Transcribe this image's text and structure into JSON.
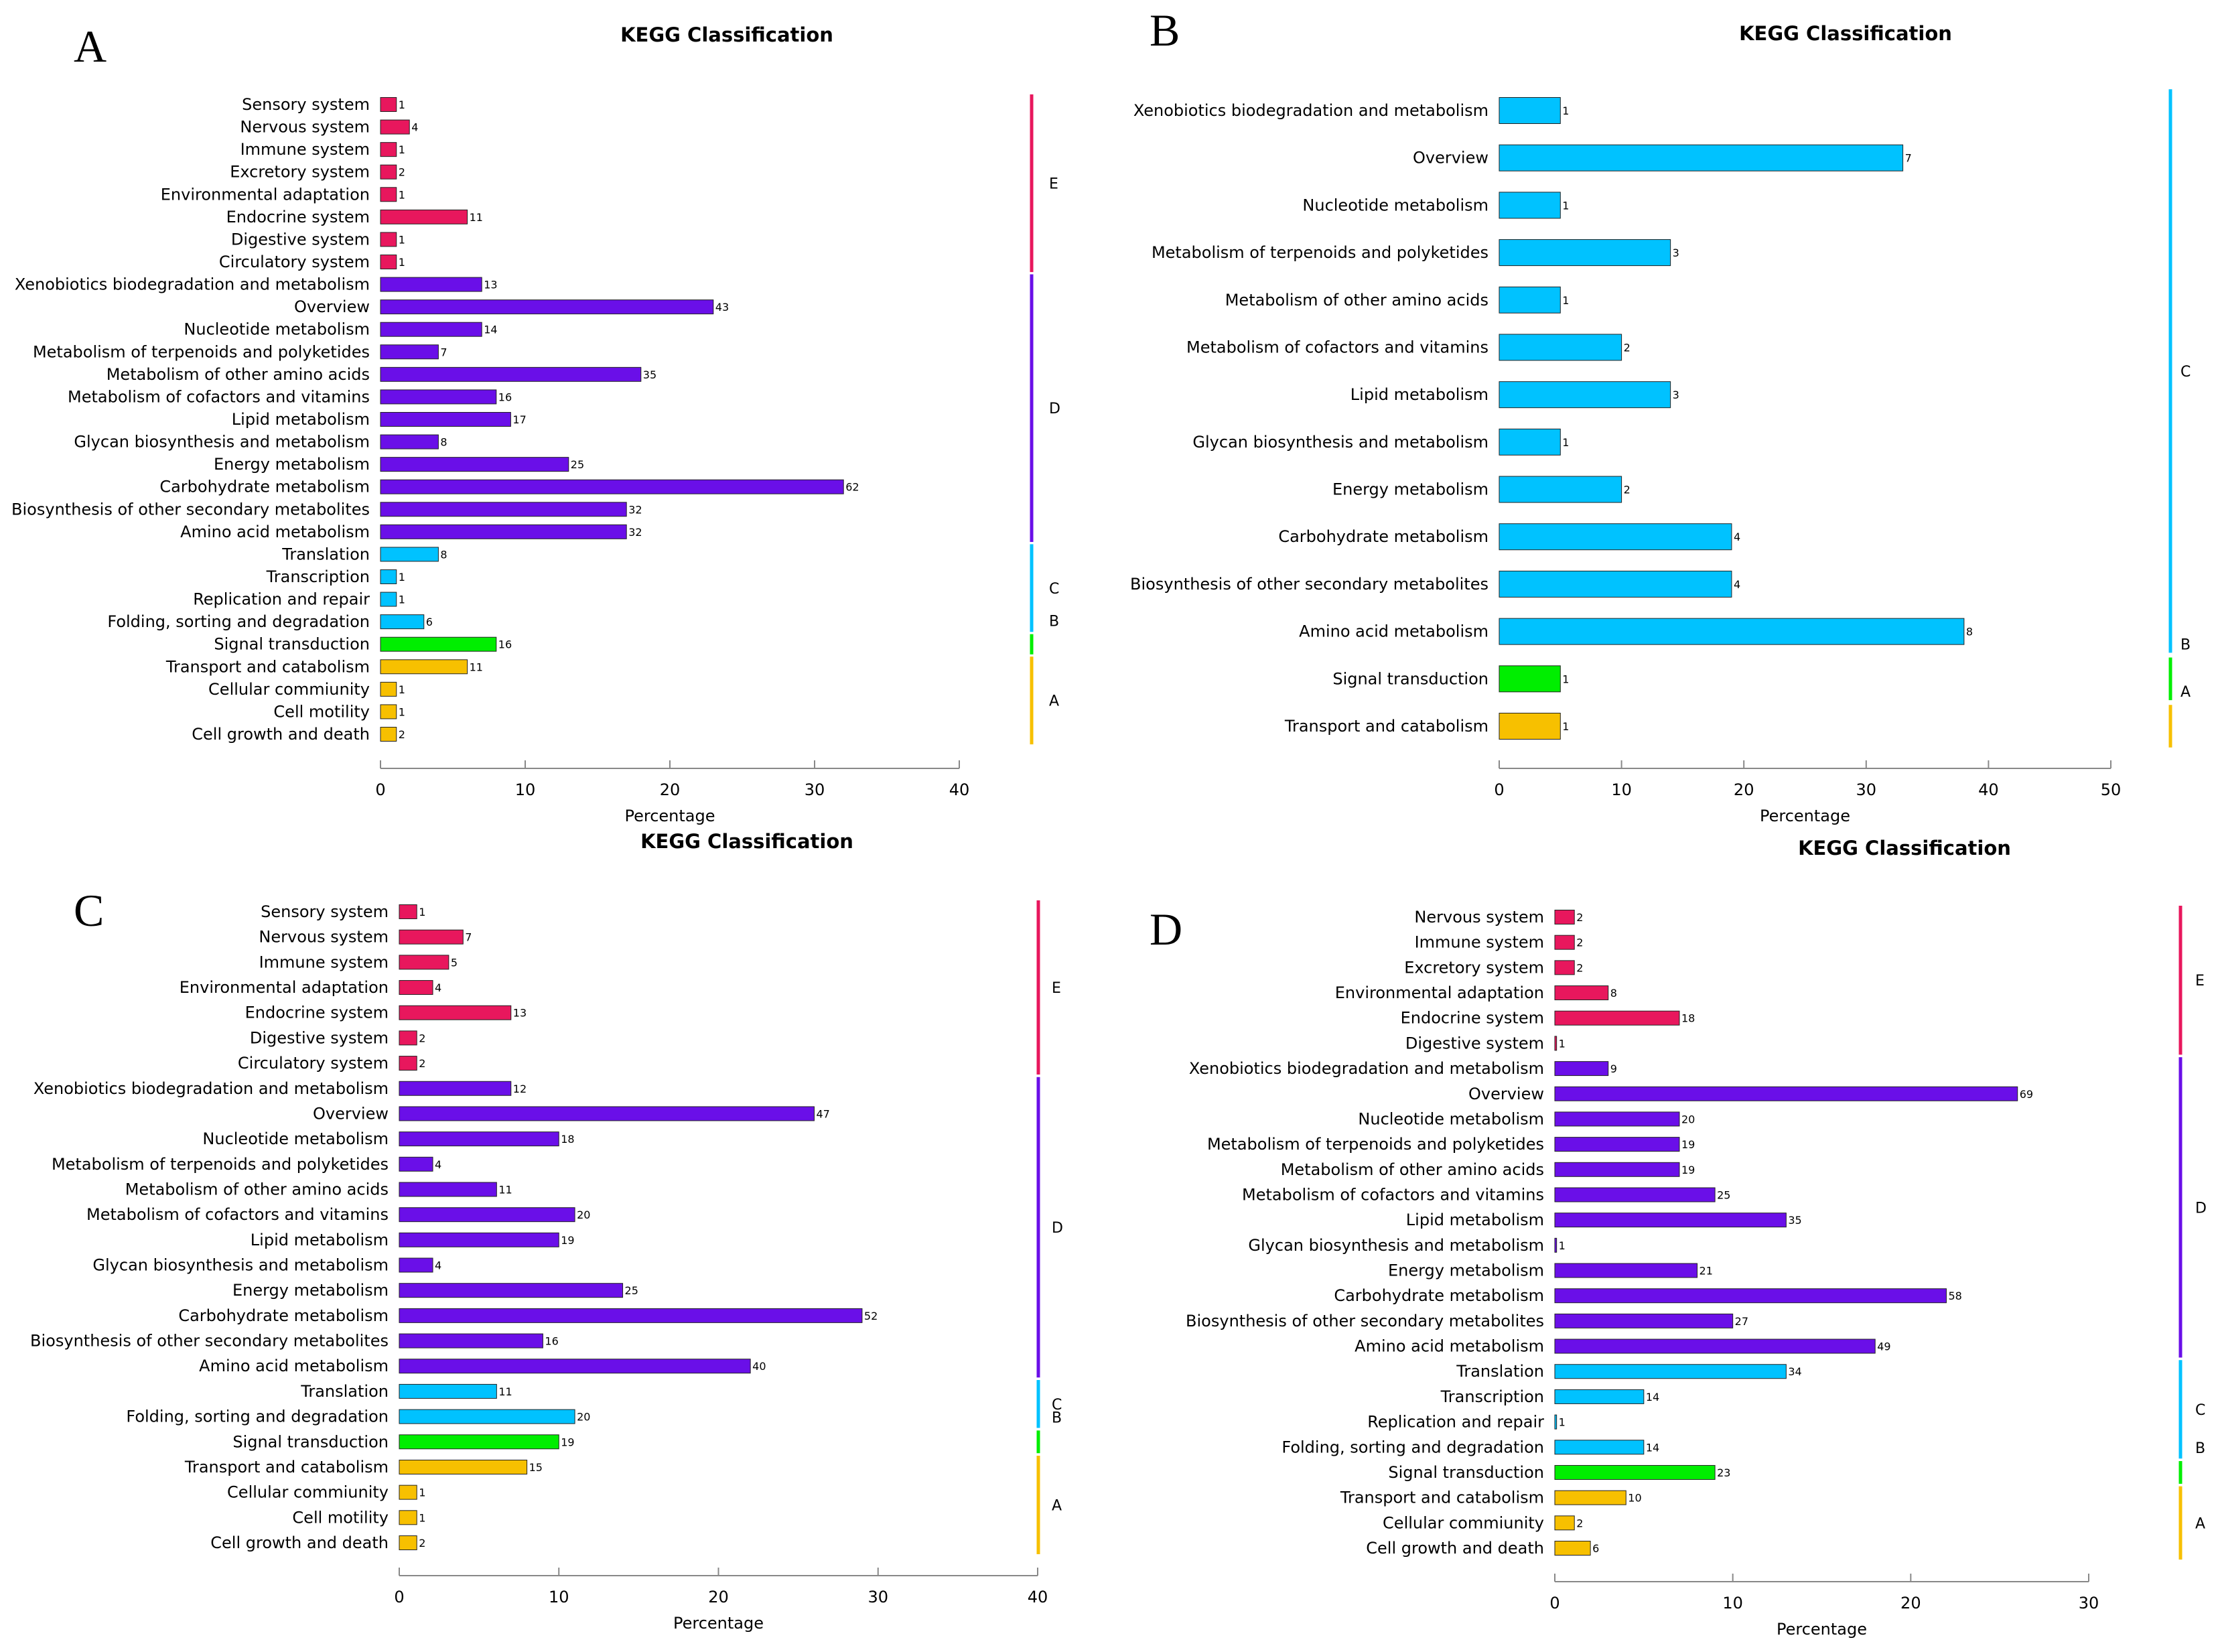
{
  "colors": {
    "E": "#e8175d",
    "D": "#6a0fe8",
    "C": "#00c2ff",
    "B": "#00ee00",
    "A": "#f7c000"
  },
  "chart_data": [
    {
      "type": "bar",
      "orientation": "horizontal",
      "panel": "A",
      "title": "KEGG Classification",
      "xlabel": "Percentage",
      "xlim": [
        0,
        40
      ],
      "xticks": [
        0,
        10,
        20,
        30,
        40
      ],
      "categories": [
        {
          "label": "Sensory system",
          "value": 1.1,
          "count": "1",
          "group": "E"
        },
        {
          "label": "Nervous system",
          "value": 2.0,
          "count": "4",
          "group": "E"
        },
        {
          "label": "Immune system",
          "value": 1.1,
          "count": "1",
          "group": "E"
        },
        {
          "label": "Excretory system",
          "value": 1.1,
          "count": "2",
          "group": "E"
        },
        {
          "label": "Environmental adaptation",
          "value": 1.1,
          "count": "1",
          "group": "E"
        },
        {
          "label": "Endocrine system",
          "value": 6.0,
          "count": "11",
          "group": "E"
        },
        {
          "label": "Digestive system",
          "value": 1.1,
          "count": "1",
          "group": "E"
        },
        {
          "label": "Circulatory system",
          "value": 1.1,
          "count": "1",
          "group": "E"
        },
        {
          "label": "Xenobiotics biodegradation and metabolism",
          "value": 7.0,
          "count": "13",
          "group": "D"
        },
        {
          "label": "Overview",
          "value": 23.0,
          "count": "43",
          "group": "D"
        },
        {
          "label": "Nucleotide metabolism",
          "value": 7.0,
          "count": "14",
          "group": "D"
        },
        {
          "label": "Metabolism of terpenoids and polyketides",
          "value": 4.0,
          "count": "7",
          "group": "D"
        },
        {
          "label": "Metabolism of other amino acids",
          "value": 18.0,
          "count": "35",
          "group": "D"
        },
        {
          "label": "Metabolism of cofactors and vitamins",
          "value": 8.0,
          "count": "16",
          "group": "D"
        },
        {
          "label": "Lipid metabolism",
          "value": 9.0,
          "count": "17",
          "group": "D"
        },
        {
          "label": "Glycan biosynthesis and metabolism",
          "value": 4.0,
          "count": "8",
          "group": "D"
        },
        {
          "label": "Energy metabolism",
          "value": 13.0,
          "count": "25",
          "group": "D"
        },
        {
          "label": "Carbohydrate metabolism",
          "value": 32.0,
          "count": "62",
          "group": "D"
        },
        {
          "label": "Biosynthesis of other secondary metabolites",
          "value": 17.0,
          "count": "32",
          "group": "D"
        },
        {
          "label": "Amino acid metabolism",
          "value": 17.0,
          "count": "32",
          "group": "D"
        },
        {
          "label": "Translation",
          "value": 4.0,
          "count": "8",
          "group": "C"
        },
        {
          "label": "Transcription",
          "value": 1.1,
          "count": "1",
          "group": "C"
        },
        {
          "label": "Replication and repair",
          "value": 1.1,
          "count": "1",
          "group": "C"
        },
        {
          "label": "Folding, sorting and degradation",
          "value": 3.0,
          "count": "6",
          "group": "C"
        },
        {
          "label": "Signal transduction",
          "value": 8.0,
          "count": "16",
          "group": "B"
        },
        {
          "label": "Transport and catabolism",
          "value": 6.0,
          "count": "11",
          "group": "A"
        },
        {
          "label": "Cellular commiunity",
          "value": 1.1,
          "count": "1",
          "group": "A"
        },
        {
          "label": "Cell motility",
          "value": 1.1,
          "count": "1",
          "group": "A"
        },
        {
          "label": "Cell growth and death",
          "value": 1.1,
          "count": "2",
          "group": "A"
        }
      ]
    },
    {
      "type": "bar",
      "orientation": "horizontal",
      "panel": "B",
      "title": "KEGG Classification",
      "xlabel": "Percentage",
      "xlim": [
        0,
        50
      ],
      "xticks": [
        0,
        10,
        20,
        30,
        40,
        50
      ],
      "categories": [
        {
          "label": "Xenobiotics biodegradation and metabolism",
          "value": 5.0,
          "count": "1",
          "group": "C"
        },
        {
          "label": "Overview",
          "value": 33.0,
          "count": "7",
          "group": "C"
        },
        {
          "label": "Nucleotide metabolism",
          "value": 5.0,
          "count": "1",
          "group": "C"
        },
        {
          "label": "Metabolism of terpenoids and polyketides",
          "value": 14.0,
          "count": "3",
          "group": "C"
        },
        {
          "label": "Metabolism of other amino acids",
          "value": 5.0,
          "count": "1",
          "group": "C"
        },
        {
          "label": "Metabolism of cofactors and vitamins",
          "value": 10.0,
          "count": "2",
          "group": "C"
        },
        {
          "label": "Lipid metabolism",
          "value": 14.0,
          "count": "3",
          "group": "C"
        },
        {
          "label": "Glycan biosynthesis and metabolism",
          "value": 5.0,
          "count": "1",
          "group": "C"
        },
        {
          "label": "Energy metabolism",
          "value": 10.0,
          "count": "2",
          "group": "C"
        },
        {
          "label": "Carbohydrate metabolism",
          "value": 19.0,
          "count": "4",
          "group": "C"
        },
        {
          "label": "Biosynthesis of other secondary metabolites",
          "value": 19.0,
          "count": "4",
          "group": "C"
        },
        {
          "label": "Amino acid metabolism",
          "value": 38.0,
          "count": "8",
          "group": "C"
        },
        {
          "label": "Signal transduction",
          "value": 5.0,
          "count": "1",
          "group": "B"
        },
        {
          "label": "Transport and catabolism",
          "value": 5.0,
          "count": "1",
          "group": "A"
        }
      ]
    },
    {
      "type": "bar",
      "orientation": "horizontal",
      "panel": "C",
      "title": "KEGG Classification",
      "xlabel": "Percentage",
      "xlim": [
        0,
        40
      ],
      "xticks": [
        0,
        10,
        20,
        30,
        40
      ],
      "categories": [
        {
          "label": "Sensory system",
          "value": 1.1,
          "count": "1",
          "group": "E"
        },
        {
          "label": "Nervous system",
          "value": 4.0,
          "count": "7",
          "group": "E"
        },
        {
          "label": "Immune system",
          "value": 3.1,
          "count": "5",
          "group": "E"
        },
        {
          "label": "Environmental adaptation",
          "value": 2.1,
          "count": "4",
          "group": "E"
        },
        {
          "label": "Endocrine system",
          "value": 7.0,
          "count": "13",
          "group": "E"
        },
        {
          "label": "Digestive system",
          "value": 1.1,
          "count": "2",
          "group": "E"
        },
        {
          "label": "Circulatory system",
          "value": 1.1,
          "count": "2",
          "group": "E"
        },
        {
          "label": "Xenobiotics biodegradation and metabolism",
          "value": 7.0,
          "count": "12",
          "group": "D"
        },
        {
          "label": "Overview",
          "value": 26.0,
          "count": "47",
          "group": "D"
        },
        {
          "label": "Nucleotide metabolism",
          "value": 10.0,
          "count": "18",
          "group": "D"
        },
        {
          "label": "Metabolism of terpenoids and polyketides",
          "value": 2.1,
          "count": "4",
          "group": "D"
        },
        {
          "label": "Metabolism of other amino acids",
          "value": 6.1,
          "count": "11",
          "group": "D"
        },
        {
          "label": "Metabolism of cofactors and vitamins",
          "value": 11.0,
          "count": "20",
          "group": "D"
        },
        {
          "label": "Lipid metabolism",
          "value": 10.0,
          "count": "19",
          "group": "D"
        },
        {
          "label": "Glycan biosynthesis and metabolism",
          "value": 2.1,
          "count": "4",
          "group": "D"
        },
        {
          "label": "Energy metabolism",
          "value": 14.0,
          "count": "25",
          "group": "D"
        },
        {
          "label": "Carbohydrate metabolism",
          "value": 29.0,
          "count": "52",
          "group": "D"
        },
        {
          "label": "Biosynthesis of other secondary metabolites",
          "value": 9.0,
          "count": "16",
          "group": "D"
        },
        {
          "label": "Amino acid metabolism",
          "value": 22.0,
          "count": "40",
          "group": "D"
        },
        {
          "label": "Translation",
          "value": 6.1,
          "count": "11",
          "group": "C"
        },
        {
          "label": "Folding, sorting and degradation",
          "value": 11.0,
          "count": "20",
          "group": "C"
        },
        {
          "label": "Signal transduction",
          "value": 10.0,
          "count": "19",
          "group": "B"
        },
        {
          "label": "Transport and catabolism",
          "value": 8.0,
          "count": "15",
          "group": "A"
        },
        {
          "label": "Cellular commiunity",
          "value": 1.1,
          "count": "1",
          "group": "A"
        },
        {
          "label": "Cell motility",
          "value": 1.1,
          "count": "1",
          "group": "A"
        },
        {
          "label": "Cell growth and death",
          "value": 1.1,
          "count": "2",
          "group": "A"
        }
      ]
    },
    {
      "type": "bar",
      "orientation": "horizontal",
      "panel": "D",
      "title": "KEGG Classification",
      "xlabel": "Percentage",
      "xlim": [
        0,
        30
      ],
      "xticks": [
        0,
        10,
        20,
        30
      ],
      "categories": [
        {
          "label": "Nervous system",
          "value": 1.1,
          "count": "2",
          "group": "E"
        },
        {
          "label": "Immune system",
          "value": 1.1,
          "count": "2",
          "group": "E"
        },
        {
          "label": "Excretory system",
          "value": 1.1,
          "count": "2",
          "group": "E"
        },
        {
          "label": "Environmental adaptation",
          "value": 3.0,
          "count": "8",
          "group": "E"
        },
        {
          "label": "Endocrine system",
          "value": 7.0,
          "count": "18",
          "group": "E"
        },
        {
          "label": "Digestive system",
          "value": 0.1,
          "count": "1",
          "group": "E"
        },
        {
          "label": "Xenobiotics biodegradation and metabolism",
          "value": 3.0,
          "count": "9",
          "group": "D"
        },
        {
          "label": "Overview",
          "value": 26.0,
          "count": "69",
          "group": "D"
        },
        {
          "label": "Nucleotide metabolism",
          "value": 7.0,
          "count": "20",
          "group": "D"
        },
        {
          "label": "Metabolism of terpenoids and polyketides",
          "value": 7.0,
          "count": "19",
          "group": "D"
        },
        {
          "label": "Metabolism of other amino acids",
          "value": 7.0,
          "count": "19",
          "group": "D"
        },
        {
          "label": "Metabolism of cofactors and vitamins",
          "value": 9.0,
          "count": "25",
          "group": "D"
        },
        {
          "label": "Lipid metabolism",
          "value": 13.0,
          "count": "35",
          "group": "D"
        },
        {
          "label": "Glycan biosynthesis and metabolism",
          "value": 0.1,
          "count": "1",
          "group": "D"
        },
        {
          "label": "Energy metabolism",
          "value": 8.0,
          "count": "21",
          "group": "D"
        },
        {
          "label": "Carbohydrate metabolism",
          "value": 22.0,
          "count": "58",
          "group": "D"
        },
        {
          "label": "Biosynthesis of other secondary metabolites",
          "value": 10.0,
          "count": "27",
          "group": "D"
        },
        {
          "label": "Amino acid metabolism",
          "value": 18.0,
          "count": "49",
          "group": "D"
        },
        {
          "label": "Translation",
          "value": 13.0,
          "count": "34",
          "group": "C"
        },
        {
          "label": "Transcription",
          "value": 5.0,
          "count": "14",
          "group": "C"
        },
        {
          "label": "Replication and repair",
          "value": 0.1,
          "count": "1",
          "group": "C"
        },
        {
          "label": "Folding, sorting and degradation",
          "value": 5.0,
          "count": "14",
          "group": "C"
        },
        {
          "label": "Signal transduction",
          "value": 9.0,
          "count": "23",
          "group": "B"
        },
        {
          "label": "Transport and catabolism",
          "value": 4.0,
          "count": "10",
          "group": "A"
        },
        {
          "label": "Cellular commiunity",
          "value": 1.1,
          "count": "2",
          "group": "A"
        },
        {
          "label": "Cell growth and death",
          "value": 2.0,
          "count": "6",
          "group": "A"
        }
      ]
    }
  ]
}
